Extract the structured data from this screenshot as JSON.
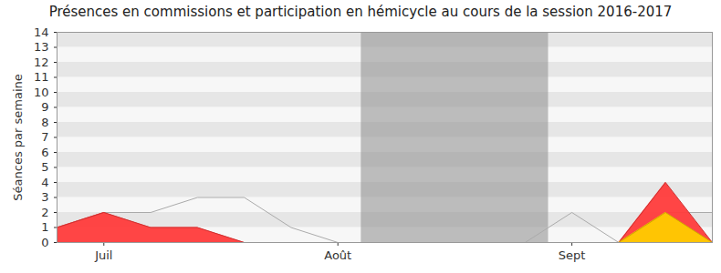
{
  "chart_data": {
    "type": "area",
    "title": "Présences en commissions et participation en hémicycle au cours de la session 2016-2017",
    "y_label": "Séances par semaine",
    "categories": [
      null,
      "Juil",
      null,
      null,
      null,
      null,
      "Août",
      null,
      null,
      null,
      null,
      "Sept",
      null,
      null,
      null
    ],
    "series": [
      {
        "type": "area",
        "color": "#ff3b3b",
        "values": [
          1,
          2,
          1,
          1,
          0,
          0,
          0,
          0,
          0,
          0,
          0,
          0,
          0,
          4,
          0
        ]
      },
      {
        "type": "area",
        "color": "#ffcc00",
        "values": [
          0,
          0,
          0,
          0,
          0,
          0,
          0,
          0,
          0,
          0,
          0,
          0,
          0,
          2,
          0
        ]
      },
      {
        "type": "line",
        "color": "#aaaaaa",
        "values": [
          1,
          2,
          2,
          3,
          3,
          1,
          0,
          0,
          0,
          0,
          0,
          2,
          0,
          2,
          2
        ]
      }
    ],
    "shaded_range": [
      6.5,
      10.5
    ],
    "ylim": [
      0,
      14
    ],
    "yticks": [
      0,
      1,
      2,
      3,
      4,
      5,
      6,
      7,
      8,
      9,
      10,
      11,
      12,
      13,
      14
    ],
    "grid": true,
    "stacked": false
  }
}
